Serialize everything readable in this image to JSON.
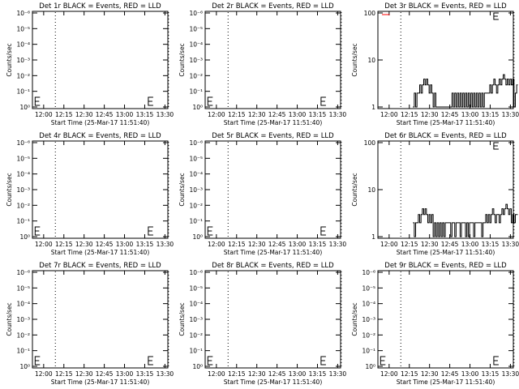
{
  "colors": {
    "events": "#000000",
    "lld": "#ff0000",
    "background": "#ffffff"
  },
  "chart_data": [
    {
      "type": "line",
      "title": "Det 1r BLACK = Events, RED = LLD",
      "xlabel": "Start Time (25-Mar-17 11:51:40)",
      "ylabel": "Counts/sec",
      "scale": "log",
      "x_ticks": [
        "12:00",
        "12:15",
        "12:30",
        "12:45",
        "13:00",
        "13:15",
        "13:30"
      ],
      "y_ticks": [
        "10⁰",
        "10⁻¹",
        "10⁻²",
        "10⁻³",
        "10⁻⁴",
        "10⁻⁵",
        "10⁻⁶"
      ],
      "markers_minutes": [
        17,
        101
      ],
      "series": []
    },
    {
      "type": "line",
      "title": "Det 2r BLACK = Events, RED = LLD",
      "xlabel": "Start Time (25-Mar-17 11:51:40)",
      "ylabel": "Counts/sec",
      "scale": "log",
      "x_ticks": [
        "12:00",
        "12:15",
        "12:30",
        "12:45",
        "13:00",
        "13:15",
        "13:30"
      ],
      "y_ticks": [
        "10⁰",
        "10⁻¹",
        "10⁻²",
        "10⁻³",
        "10⁻⁴",
        "10⁻⁵",
        "10⁻⁶"
      ],
      "markers_minutes": [
        17,
        101
      ],
      "series": []
    },
    {
      "type": "line",
      "title": "Det 3r BLACK = Events, RED = LLD",
      "xlabel": "Start Time (25-Mar-17 11:51:40)",
      "ylabel": "Counts/sec",
      "scale": "log",
      "x_ticks": [
        "12:00",
        "12:15",
        "12:30",
        "12:45",
        "13:00",
        "13:15",
        "13:30"
      ],
      "y_ticks": [
        "100",
        "10",
        "1"
      ],
      "markers_minutes": [
        17,
        101
      ],
      "series": [
        {
          "color": "events",
          "x": [
            26,
            27,
            28,
            29,
            30,
            31,
            32,
            33,
            34,
            35,
            36,
            37,
            38,
            39,
            40,
            41,
            42,
            43,
            44,
            45,
            46,
            47,
            48,
            49,
            50,
            51,
            52,
            53,
            54,
            55,
            56,
            57,
            58,
            59,
            60,
            61,
            62,
            63,
            64,
            65,
            66,
            67,
            68,
            69,
            70,
            71,
            72,
            73,
            74,
            75,
            76,
            77,
            78,
            79,
            80,
            81,
            82,
            83,
            84,
            85,
            86,
            87,
            88,
            89,
            90,
            91,
            92,
            93,
            94,
            95,
            96,
            97,
            98,
            99,
            100,
            101,
            102,
            103
          ],
          "y": [
            1,
            2,
            1,
            2,
            2,
            3,
            2,
            3,
            4,
            3,
            4,
            3,
            2,
            3,
            2,
            1,
            2,
            1,
            1,
            1,
            1,
            1,
            1,
            1,
            1,
            1,
            1,
            1,
            1,
            2,
            1,
            2,
            1,
            2,
            1,
            2,
            1,
            2,
            1,
            2,
            1,
            2,
            1,
            2,
            1,
            2,
            1,
            2,
            1,
            2,
            1,
            2,
            1,
            2,
            2,
            2,
            2,
            3,
            2,
            3,
            4,
            3,
            2,
            3,
            4,
            3,
            4,
            5,
            4,
            3,
            4,
            3,
            4,
            3,
            4,
            1,
            2,
            3
          ]
        },
        {
          "color": "lld",
          "x": [
            3,
            8
          ],
          "y": [
            100,
            100
          ]
        }
      ]
    },
    {
      "type": "line",
      "title": "Det 4r BLACK = Events, RED = LLD",
      "xlabel": "Start Time (25-Mar-17 11:51:40)",
      "ylabel": "Counts/sec",
      "scale": "log",
      "x_ticks": [
        "12:00",
        "12:15",
        "12:30",
        "12:45",
        "13:00",
        "13:15",
        "13:30"
      ],
      "y_ticks": [
        "10⁰",
        "10⁻¹",
        "10⁻²",
        "10⁻³",
        "10⁻⁴",
        "10⁻⁵",
        "10⁻⁶"
      ],
      "markers_minutes": [
        17,
        101
      ],
      "series": []
    },
    {
      "type": "line",
      "title": "Det 5r BLACK = Events, RED = LLD",
      "xlabel": "Start Time (25-Mar-17 11:51:40)",
      "ylabel": "Counts/sec",
      "scale": "log",
      "x_ticks": [
        "12:00",
        "12:15",
        "12:30",
        "12:45",
        "13:00",
        "13:15",
        "13:30"
      ],
      "y_ticks": [
        "10⁰",
        "10⁻¹",
        "10⁻²",
        "10⁻³",
        "10⁻⁴",
        "10⁻⁵",
        "10⁻⁶"
      ],
      "markers_minutes": [
        17,
        101
      ],
      "series": []
    },
    {
      "type": "line",
      "title": "Det 6r BLACK = Events, RED = LLD",
      "xlabel": "Start Time (25-Mar-17 11:51:40)",
      "ylabel": "Counts/sec",
      "scale": "log",
      "x_ticks": [
        "12:00",
        "12:15",
        "12:30",
        "12:45",
        "13:00",
        "13:15",
        "13:30"
      ],
      "y_ticks": [
        "100",
        "10",
        "1"
      ],
      "markers_minutes": [
        17,
        101
      ],
      "series": [
        {
          "color": "events",
          "x": [
            26,
            27,
            28,
            29,
            30,
            31,
            32,
            33,
            34,
            35,
            36,
            37,
            38,
            39,
            40,
            41,
            42,
            43,
            44,
            45,
            46,
            47,
            48,
            49,
            50,
            51,
            52,
            53,
            54,
            55,
            56,
            57,
            58,
            59,
            60,
            61,
            62,
            63,
            64,
            65,
            66,
            67,
            68,
            69,
            70,
            71,
            72,
            73,
            74,
            75,
            76,
            77,
            78,
            79,
            80,
            81,
            82,
            83,
            84,
            85,
            86,
            87,
            88,
            89,
            90,
            91,
            92,
            93,
            94,
            95,
            96,
            97,
            98,
            99,
            100,
            101,
            102,
            103
          ],
          "y": [
            2,
            1,
            2,
            2,
            3,
            2,
            3,
            4,
            3,
            4,
            3,
            2,
            3,
            2,
            3,
            1,
            2,
            1,
            2,
            1,
            2,
            1,
            2,
            1,
            2,
            2,
            2,
            2,
            1,
            2,
            2,
            1,
            2,
            2,
            2,
            1,
            2,
            2,
            2,
            1,
            2,
            1,
            2,
            2,
            2,
            1,
            2,
            2,
            2,
            2,
            2,
            1,
            2,
            2,
            3,
            2,
            3,
            2,
            3,
            4,
            3,
            2,
            3,
            3,
            2,
            3,
            4,
            3,
            4,
            5,
            4,
            3,
            4,
            2,
            3,
            2,
            3,
            3
          ]
        }
      ]
    },
    {
      "type": "line",
      "title": "Det 7r BLACK = Events, RED = LLD",
      "xlabel": "Start Time (25-Mar-17 11:51:40)",
      "ylabel": "Counts/sec",
      "scale": "log",
      "x_ticks": [
        "12:00",
        "12:15",
        "12:30",
        "12:45",
        "13:00",
        "13:15",
        "13:30"
      ],
      "y_ticks": [
        "10⁰",
        "10⁻¹",
        "10⁻²",
        "10⁻³",
        "10⁻⁴",
        "10⁻⁵",
        "10⁻⁶"
      ],
      "markers_minutes": [
        17,
        101
      ],
      "series": []
    },
    {
      "type": "line",
      "title": "Det 8r BLACK = Events, RED = LLD",
      "xlabel": "Start Time (25-Mar-17 11:51:40)",
      "ylabel": "Counts/sec",
      "scale": "log",
      "x_ticks": [
        "12:00",
        "12:15",
        "12:30",
        "12:45",
        "13:00",
        "13:15",
        "13:30"
      ],
      "y_ticks": [
        "10⁰",
        "10⁻¹",
        "10⁻²",
        "10⁻³",
        "10⁻⁴",
        "10⁻⁵",
        "10⁻⁶"
      ],
      "markers_minutes": [
        17,
        101
      ],
      "series": []
    },
    {
      "type": "line",
      "title": "Det 9r BLACK = Events, RED = LLD",
      "xlabel": "Start Time (25-Mar-17 11:51:40)",
      "ylabel": "Counts/sec",
      "scale": "log",
      "x_ticks": [
        "12:00",
        "12:15",
        "12:30",
        "12:45",
        "13:00",
        "13:15",
        "13:30"
      ],
      "y_ticks": [
        "10⁰",
        "10⁻¹",
        "10⁻²",
        "10⁻³",
        "10⁻⁴",
        "10⁻⁵",
        "10⁻⁶"
      ],
      "markers_minutes": [
        17,
        101
      ],
      "series": []
    }
  ]
}
